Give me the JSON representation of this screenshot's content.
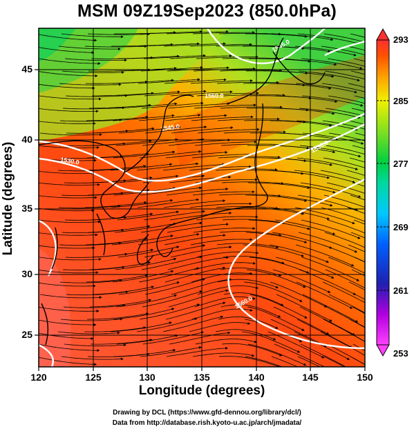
{
  "title": "MSM 09Z19Sep2023 (850.0hPa)",
  "x_axis": {
    "label": "Longitude (degrees)",
    "ticks": [
      "120",
      "125",
      "130",
      "135",
      "140",
      "145",
      "150"
    ]
  },
  "y_axis": {
    "label": "Latitude (degrees)",
    "ticks": [
      "25",
      "30",
      "35",
      "40",
      "45"
    ]
  },
  "colorbar": {
    "labels": [
      "293",
      "285",
      "277",
      "269",
      "261",
      "253"
    ],
    "stops": [
      {
        "value": 253,
        "color": "#ff40ff"
      },
      {
        "value": 257,
        "color": "#b000e0"
      },
      {
        "value": 261,
        "color": "#2020b0"
      },
      {
        "value": 266,
        "color": "#0060ff"
      },
      {
        "value": 270,
        "color": "#00c8ff"
      },
      {
        "value": 274,
        "color": "#00d8a0"
      },
      {
        "value": 277,
        "color": "#00d040"
      },
      {
        "value": 281,
        "color": "#80e020"
      },
      {
        "value": 285,
        "color": "#f0f000"
      },
      {
        "value": 288,
        "color": "#ffa000"
      },
      {
        "value": 291,
        "color": "#ff5000"
      },
      {
        "value": 293,
        "color": "#ff3030"
      }
    ]
  },
  "contours": [
    {
      "label": "1560.0"
    },
    {
      "label": "1545.0"
    },
    {
      "label": "1530.0"
    },
    {
      "label": "1530.0"
    },
    {
      "label": "1545.0"
    },
    {
      "label": "1560.0"
    }
  ],
  "credits": {
    "line1": "Drawing by DCL (https://www.gfd-dennou.org/library/dcl/)",
    "line2": "Data from http://database.rish.kyoto-u.ac.jp/arch/jmadata/"
  }
}
